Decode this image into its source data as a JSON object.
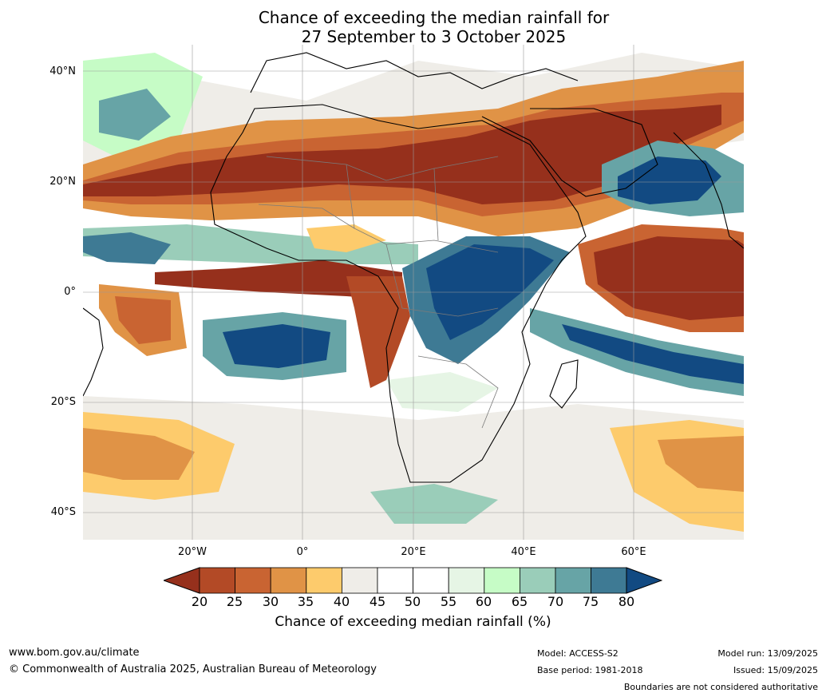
{
  "title": {
    "line1": "Chance of exceeding the median rainfall for",
    "line2": "27 September to 3 October 2025"
  },
  "map": {
    "lat_labels": [
      "40°N",
      "20°N",
      "0°",
      "20°S",
      "40°S"
    ],
    "lon_labels": [
      "20°W",
      "0°",
      "20°E",
      "40°E",
      "60°E"
    ],
    "colors": {
      "c20": "#96301c",
      "c25": "#b34a26",
      "c30": "#c96432",
      "c35": "#e09346",
      "c40": "#fdcb6c",
      "c45": "#efede8",
      "c50": "#ffffff",
      "c55": "#ffffff",
      "c60": "#e6f5e5",
      "c65": "#c6fcc6",
      "c70": "#9acdb9",
      "c75": "#67a4a6",
      "c80": "#3e7a94",
      "c85": "#124a82"
    }
  },
  "legend": {
    "ticks": [
      "20",
      "25",
      "30",
      "35",
      "40",
      "45",
      "50",
      "55",
      "60",
      "65",
      "70",
      "75",
      "80"
    ],
    "label": "Chance of exceeding median rainfall (%)"
  },
  "footer": {
    "url": "www.bom.gov.au/climate",
    "copyright": "© Commonwealth of Australia 2025, Australian Bureau of Meteorology",
    "model": "Model: ACCESS-S2",
    "base_period": "Base period: 1981-2018",
    "model_run": "Model run: 13/09/2025",
    "issued": "Issued: 15/09/2025",
    "disclaimer": "Boundaries are not considered authoritative"
  }
}
